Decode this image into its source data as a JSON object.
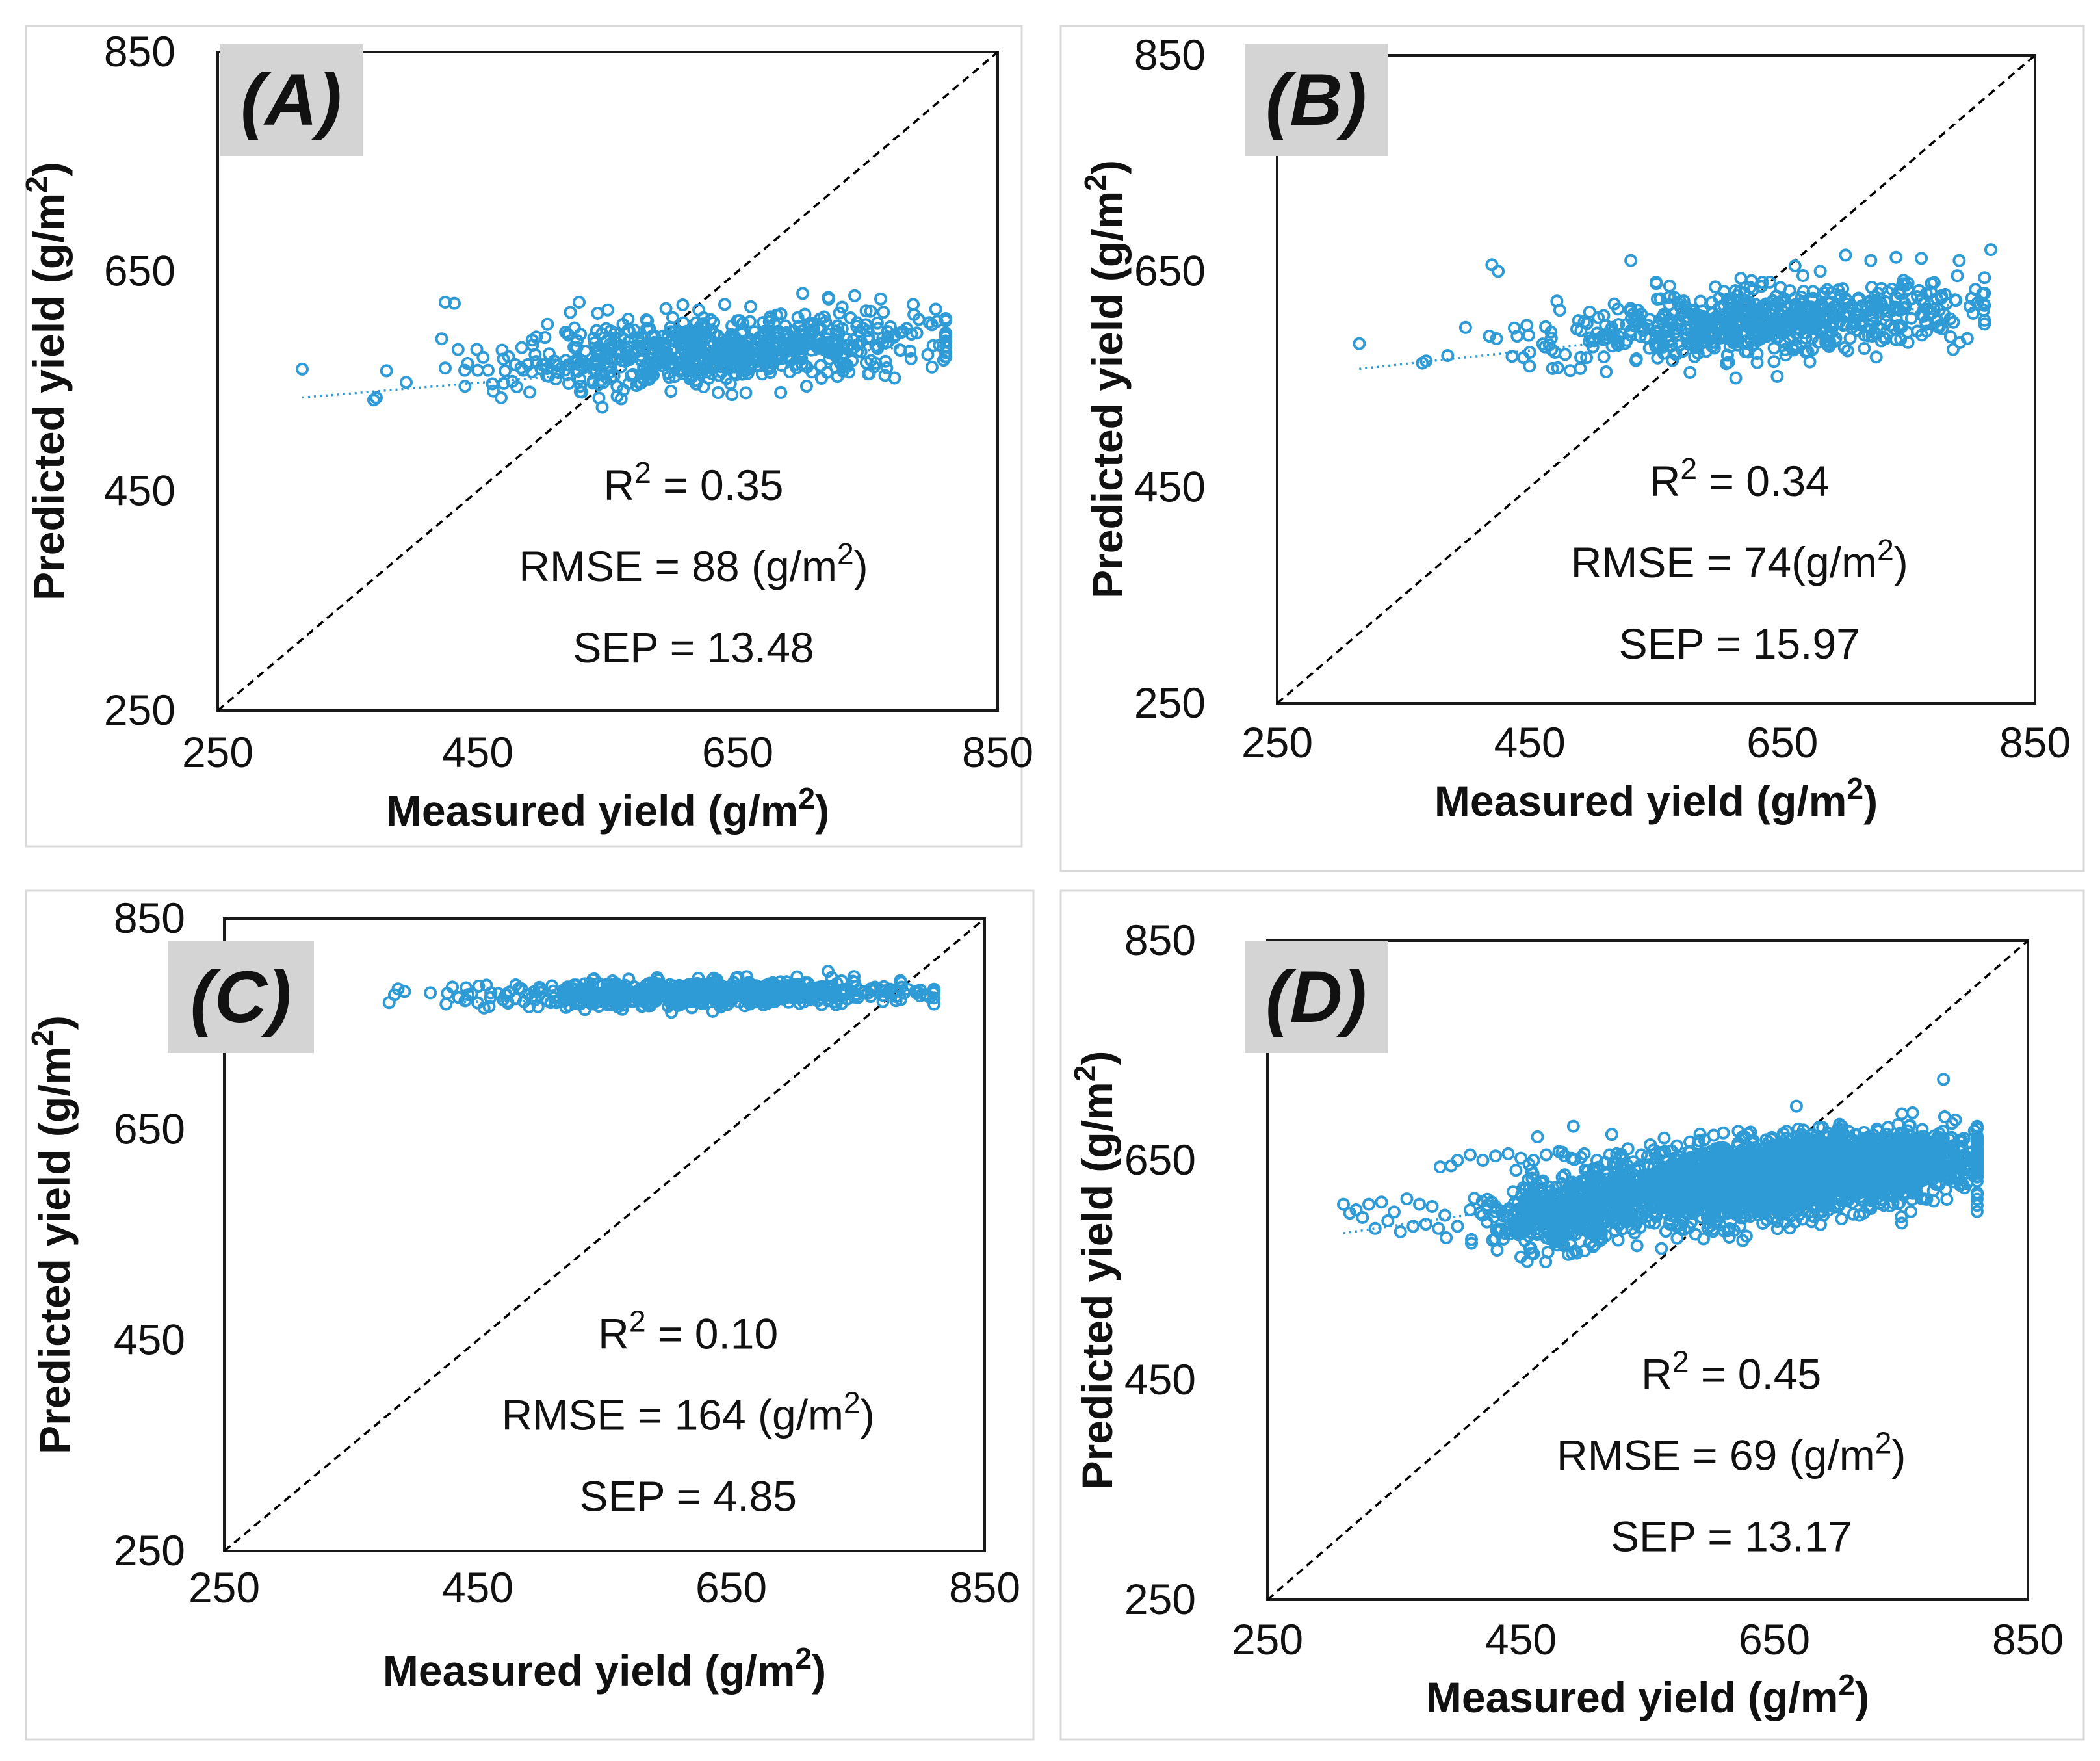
{
  "colors": {
    "point": "#2e9bd6",
    "trend": "#2e9bd6",
    "identity_line": "#000000",
    "axis": "#1a1a1a",
    "panel_label_bg": "#d4d4d4",
    "panel_border": "#d9d9d9"
  },
  "chart_data": [
    {
      "type": "scatter",
      "panel_label": "(A)",
      "xlabel": "Measured yield (g/m²)",
      "ylabel": "Predicted yield (g/m²)",
      "xlim": [
        250,
        850
      ],
      "ylim": [
        250,
        850
      ],
      "x_ticks": [
        "250",
        "450",
        "650",
        "850"
      ],
      "y_ticks": [
        "250",
        "450",
        "650",
        "850"
      ],
      "identity_line": true,
      "trendline": {
        "slope": 0.099,
        "intercept": 504
      },
      "stats": [
        "R² = 0.35",
        "RMSE = 88 (g/m²)",
        "SEP = 13.48"
      ],
      "points": [
        [
          315,
          561
        ],
        [
          370,
          533
        ],
        [
          372,
          535
        ],
        [
          395,
          549
        ],
        [
          425,
          622
        ],
        [
          432,
          621
        ],
        [
          425,
          562
        ],
        [
          440,
          560
        ],
        [
          450,
          560
        ],
        [
          458,
          560
        ],
        [
          462,
          541
        ],
        [
          468,
          535
        ],
        [
          470,
          548
        ],
        [
          480,
          545
        ],
        [
          490,
          540
        ],
        [
          500,
          565
        ],
        [
          512,
          558
        ],
        [
          520,
          548
        ],
        [
          528,
          622
        ],
        [
          550,
          615
        ],
        [
          540,
          560
        ],
        [
          552,
          570
        ],
        [
          560,
          575
        ],
        [
          568,
          555
        ],
        [
          575,
          548
        ],
        [
          580,
          565
        ],
        [
          590,
          580
        ],
        [
          600,
          570
        ],
        [
          612,
          575
        ],
        [
          618,
          558
        ],
        [
          625,
          562
        ],
        [
          635,
          570
        ],
        [
          640,
          580
        ],
        [
          648,
          590
        ],
        [
          655,
          575
        ],
        [
          665,
          568
        ],
        [
          672,
          580
        ],
        [
          680,
          595
        ],
        [
          690,
          572
        ],
        [
          700,
          588
        ],
        [
          712,
          580
        ],
        [
          720,
          578
        ],
        [
          735,
          583
        ],
        [
          745,
          586
        ],
        [
          758,
          598
        ],
        [
          770,
          590
        ],
        [
          785,
          620
        ],
        [
          780,
          598
        ],
        [
          640,
          620
        ],
        [
          660,
          618
        ],
        [
          700,
          630
        ],
        [
          720,
          625
        ],
        [
          740,
          628
        ],
        [
          760,
          625
        ],
        [
          620,
          615
        ],
        [
          600,
          608
        ],
        [
          580,
          598
        ],
        [
          560,
          590
        ],
        [
          540,
          585
        ],
        [
          520,
          592
        ],
        [
          505,
          575
        ],
        [
          495,
          568
        ],
        [
          485,
          560
        ],
        [
          530,
          540
        ],
        [
          510,
          552
        ]
      ],
      "point_clouds": [
        {
          "cx": 640,
          "cy": 577,
          "sx": 80,
          "sy": 15,
          "n": 650
        }
      ]
    },
    {
      "type": "scatter",
      "panel_label": "(B)",
      "xlabel": "Measured yield (g/m²)",
      "ylabel": "Predicted yield (g/m²)",
      "xlim": [
        250,
        850
      ],
      "ylim": [
        250,
        850
      ],
      "x_ticks": [
        "250",
        "450",
        "650",
        "850"
      ],
      "y_ticks": [
        "250",
        "450",
        "650",
        "850"
      ],
      "identity_line": true,
      "trendline": {
        "slope": 0.126,
        "intercept": 520
      },
      "stats": [
        "R² = 0.34",
        "RMSE = 74(g/m²)",
        "SEP = 15.97"
      ],
      "points": [
        [
          315,
          583
        ],
        [
          365,
          565
        ],
        [
          368,
          567
        ],
        [
          385,
          572
        ],
        [
          420,
          656
        ],
        [
          425,
          650
        ],
        [
          418,
          590
        ],
        [
          440,
          590
        ],
        [
          445,
          570
        ],
        [
          450,
          575
        ],
        [
          462,
          580
        ],
        [
          468,
          560
        ],
        [
          470,
          575
        ],
        [
          478,
          573
        ],
        [
          482,
          558
        ],
        [
          490,
          560
        ],
        [
          497,
          585
        ],
        [
          510,
          600
        ],
        [
          515,
          598
        ],
        [
          530,
          660
        ],
        [
          550,
          640
        ],
        [
          660,
          655
        ],
        [
          680,
          650
        ],
        [
          700,
          665
        ],
        [
          720,
          660
        ],
        [
          740,
          663
        ],
        [
          760,
          662
        ],
        [
          790,
          660
        ],
        [
          780,
          620
        ],
        [
          770,
          615
        ],
        [
          800,
          625
        ],
        [
          815,
          670
        ],
        [
          640,
          640
        ],
        [
          620,
          630
        ],
        [
          600,
          625
        ],
        [
          580,
          610
        ],
        [
          560,
          605
        ],
        [
          540,
          595
        ],
        [
          520,
          585
        ],
        [
          500,
          580
        ],
        [
          495,
          570
        ],
        [
          700,
          620
        ],
        [
          730,
          615
        ],
        [
          760,
          610
        ],
        [
          775,
          600
        ],
        [
          720,
          596
        ],
        [
          705,
          598
        ],
        [
          690,
          603
        ],
        [
          660,
          605
        ],
        [
          600,
          590
        ],
        [
          580,
          585
        ]
      ],
      "point_clouds": [
        {
          "cx": 640,
          "cy": 603,
          "sx": 80,
          "sy": 15,
          "n": 650
        }
      ]
    },
    {
      "type": "scatter",
      "panel_label": "(C)",
      "xlabel": "Measured yield (g/m²)",
      "ylabel": "Predicted yield (g/m²)",
      "xlim": [
        250,
        850
      ],
      "ylim": [
        250,
        850
      ],
      "x_ticks": [
        "250",
        "450",
        "650",
        "850"
      ],
      "y_ticks": [
        "250",
        "450",
        "650",
        "850"
      ],
      "identity_line": true,
      "trendline": {
        "slope": 0.02,
        "intercept": 762
      },
      "stats": [
        "R² = 0.10",
        "RMSE = 164 (g/m²)",
        "SEP = 4.85"
      ],
      "points": [
        [
          430,
          785
        ],
        [
          435,
          775
        ],
        [
          440,
          772
        ],
        [
          450,
          770
        ],
        [
          455,
          765
        ],
        [
          460,
          775
        ],
        [
          470,
          773
        ],
        [
          480,
          774
        ],
        [
          490,
          778
        ],
        [
          500,
          780
        ],
        [
          505,
          772
        ],
        [
          510,
          775
        ],
        [
          520,
          782
        ],
        [
          530,
          776
        ],
        [
          540,
          780
        ],
        [
          550,
          778
        ],
        [
          560,
          784
        ],
        [
          570,
          779
        ],
        [
          580,
          781
        ],
        [
          590,
          776
        ],
        [
          600,
          783
        ],
        [
          610,
          779
        ],
        [
          620,
          788
        ],
        [
          630,
          781
        ],
        [
          640,
          785
        ],
        [
          650,
          779
        ],
        [
          660,
          786
        ],
        [
          670,
          782
        ],
        [
          680,
          788
        ],
        [
          690,
          780
        ],
        [
          700,
          784
        ],
        [
          710,
          778
        ],
        [
          720,
          785
        ],
        [
          730,
          780
        ],
        [
          740,
          778
        ],
        [
          750,
          775
        ],
        [
          760,
          776
        ],
        [
          770,
          777
        ],
        [
          780,
          776
        ]
      ],
      "point_clouds": [
        {
          "cx": 630,
          "cy": 779,
          "sx": 80,
          "sy": 6,
          "n": 650
        }
      ]
    },
    {
      "type": "scatter",
      "panel_label": "(D)",
      "xlabel": "Measured yield (g/m²)",
      "ylabel": "Predicted yield (g/m²)",
      "xlim": [
        250,
        850
      ],
      "ylim": [
        250,
        850
      ],
      "x_ticks": [
        "250",
        "450",
        "650",
        "850"
      ],
      "y_ticks": [
        "250",
        "450",
        "650",
        "850"
      ],
      "identity_line": true,
      "trendline": {
        "slope": 0.17,
        "intercept": 531
      },
      "stats": [
        "R² = 0.45",
        "RMSE = 69 (g/m²)",
        "SEP = 13.17"
      ],
      "points": [
        [
          310,
          610
        ],
        [
          315,
          602
        ],
        [
          320,
          605
        ],
        [
          325,
          598
        ],
        [
          330,
          610
        ],
        [
          335,
          588
        ],
        [
          340,
          612
        ],
        [
          345,
          595
        ],
        [
          350,
          603
        ],
        [
          355,
          585
        ],
        [
          360,
          615
        ],
        [
          365,
          590
        ],
        [
          370,
          610
        ],
        [
          375,
          592
        ],
        [
          380,
          608
        ],
        [
          385,
          588
        ],
        [
          390,
          600
        ],
        [
          400,
          590
        ],
        [
          410,
          605
        ],
        [
          420,
          600
        ],
        [
          430,
          608
        ],
        [
          440,
          598
        ],
        [
          450,
          562
        ],
        [
          455,
          558
        ],
        [
          460,
          565
        ],
        [
          395,
          645
        ],
        [
          400,
          650
        ],
        [
          410,
          655
        ],
        [
          420,
          650
        ],
        [
          430,
          654
        ],
        [
          440,
          656
        ],
        [
          450,
          652
        ],
        [
          460,
          650
        ],
        [
          470,
          655
        ],
        [
          480,
          658
        ],
        [
          490,
          652
        ],
        [
          500,
          656
        ],
        [
          510,
          650
        ],
        [
          520,
          655
        ],
        [
          530,
          654
        ],
        [
          545,
          655
        ],
        [
          560,
          657
        ],
        [
          575,
          650
        ],
        [
          590,
          655
        ],
        [
          600,
          658
        ],
        [
          615,
          652
        ],
        [
          630,
          658
        ],
        [
          645,
          654
        ],
        [
          660,
          656
        ],
        [
          675,
          653
        ],
        [
          690,
          658
        ],
        [
          705,
          655
        ],
        [
          720,
          660
        ],
        [
          735,
          658
        ],
        [
          750,
          662
        ],
        [
          765,
          660
        ],
        [
          780,
          664
        ],
        [
          790,
          660
        ],
        [
          800,
          655
        ],
        [
          805,
          650
        ],
        [
          810,
          645
        ],
        [
          800,
          625
        ],
        [
          780,
          628
        ],
        [
          760,
          622
        ],
        [
          740,
          630
        ],
        [
          715,
          622
        ],
        [
          690,
          630
        ],
        [
          660,
          628
        ],
        [
          640,
          622
        ]
      ],
      "point_clouds": [
        {
          "cx": 640,
          "cy": 632,
          "sx": 75,
          "sy": 18,
          "n": 2200
        },
        {
          "cx": 720,
          "cy": 645,
          "sx": 45,
          "sy": 12,
          "n": 900
        },
        {
          "cx": 480,
          "cy": 598,
          "sx": 25,
          "sy": 14,
          "n": 350
        }
      ]
    }
  ]
}
